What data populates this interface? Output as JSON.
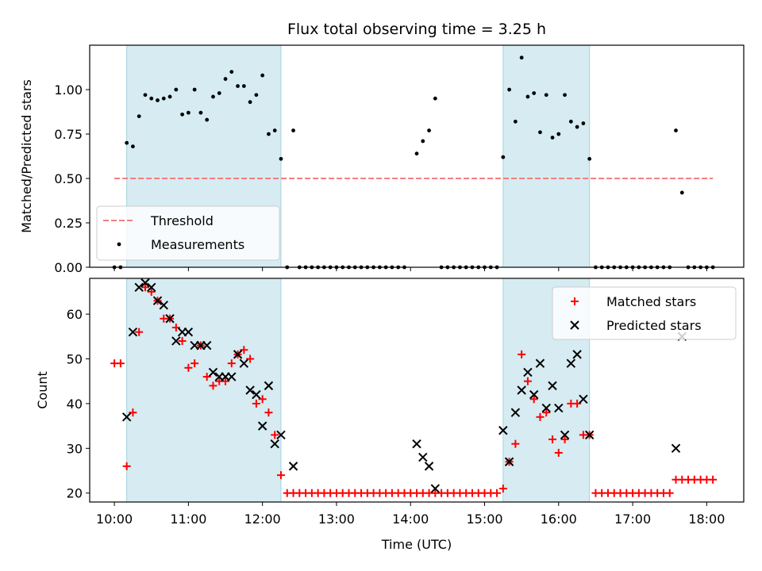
{
  "chart_data": [
    {
      "type": "scatter",
      "title": "Flux total observing time = 3.25 h",
      "xlabel": "",
      "ylabel": "Matched/Predicted stars",
      "xlim": [
        "09:40",
        "18:30"
      ],
      "ylim": [
        0,
        1.25
      ],
      "yticks": [
        "0.00",
        "0.25",
        "0.50",
        "0.75",
        "1.00"
      ],
      "grid": false,
      "legend": "lower-left",
      "shaded_intervals": [
        [
          "10:10",
          "12:15"
        ],
        [
          "15:15",
          "16:25"
        ]
      ],
      "threshold": {
        "name": "Threshold",
        "y": 0.5,
        "x_range": [
          "10:00",
          "18:05"
        ],
        "color": "#f47f7f",
        "style": "dashed"
      },
      "series": [
        {
          "name": "Measurements",
          "color": "#000000",
          "marker": "dot",
          "points": [
            [
              "10:00",
              0
            ],
            [
              "10:05",
              0
            ],
            [
              "10:10",
              0.7
            ],
            [
              "10:15",
              0.68
            ],
            [
              "10:20",
              0.85
            ],
            [
              "10:25",
              0.97
            ],
            [
              "10:30",
              0.95
            ],
            [
              "10:35",
              0.94
            ],
            [
              "10:40",
              0.95
            ],
            [
              "10:45",
              0.96
            ],
            [
              "10:50",
              1.0
            ],
            [
              "10:55",
              0.86
            ],
            [
              "11:00",
              0.87
            ],
            [
              "11:05",
              1.0
            ],
            [
              "11:10",
              0.87
            ],
            [
              "11:15",
              0.83
            ],
            [
              "11:20",
              0.96
            ],
            [
              "11:25",
              0.98
            ],
            [
              "11:30",
              1.06
            ],
            [
              "11:35",
              1.1
            ],
            [
              "11:40",
              1.02
            ],
            [
              "11:45",
              1.02
            ],
            [
              "11:50",
              0.93
            ],
            [
              "11:55",
              0.97
            ],
            [
              "12:00",
              1.08
            ],
            [
              "12:05",
              0.75
            ],
            [
              "12:10",
              0.77
            ],
            [
              "12:15",
              0.61
            ],
            [
              "12:20",
              0
            ],
            [
              "12:25",
              0.77
            ],
            [
              "12:30",
              0
            ],
            [
              "12:35",
              0
            ],
            [
              "12:40",
              0
            ],
            [
              "12:45",
              0
            ],
            [
              "12:50",
              0
            ],
            [
              "12:55",
              0
            ],
            [
              "13:00",
              0
            ],
            [
              "13:05",
              0
            ],
            [
              "13:10",
              0
            ],
            [
              "13:15",
              0
            ],
            [
              "13:20",
              0
            ],
            [
              "13:25",
              0
            ],
            [
              "13:30",
              0
            ],
            [
              "13:35",
              0
            ],
            [
              "13:40",
              0
            ],
            [
              "13:45",
              0
            ],
            [
              "13:50",
              0
            ],
            [
              "13:55",
              0
            ],
            [
              "14:05",
              0.64
            ],
            [
              "14:10",
              0.71
            ],
            [
              "14:15",
              0.77
            ],
            [
              "14:20",
              0.95
            ],
            [
              "14:25",
              0
            ],
            [
              "14:30",
              0
            ],
            [
              "14:35",
              0
            ],
            [
              "14:40",
              0
            ],
            [
              "14:45",
              0
            ],
            [
              "14:50",
              0
            ],
            [
              "14:55",
              0
            ],
            [
              "15:00",
              0
            ],
            [
              "15:05",
              0
            ],
            [
              "15:10",
              0
            ],
            [
              "15:15",
              0.62
            ],
            [
              "15:20",
              1.0
            ],
            [
              "15:25",
              0.82
            ],
            [
              "15:30",
              1.18
            ],
            [
              "15:35",
              0.96
            ],
            [
              "15:40",
              0.98
            ],
            [
              "15:45",
              0.76
            ],
            [
              "15:50",
              0.97
            ],
            [
              "15:55",
              0.73
            ],
            [
              "16:00",
              0.75
            ],
            [
              "16:05",
              0.97
            ],
            [
              "16:10",
              0.82
            ],
            [
              "16:15",
              0.79
            ],
            [
              "16:20",
              0.81
            ],
            [
              "16:25",
              0.61
            ],
            [
              "16:30",
              0
            ],
            [
              "16:35",
              0
            ],
            [
              "16:40",
              0
            ],
            [
              "16:45",
              0
            ],
            [
              "16:50",
              0
            ],
            [
              "16:55",
              0
            ],
            [
              "17:00",
              0
            ],
            [
              "17:05",
              0
            ],
            [
              "17:10",
              0
            ],
            [
              "17:15",
              0
            ],
            [
              "17:20",
              0
            ],
            [
              "17:25",
              0
            ],
            [
              "17:30",
              0
            ],
            [
              "17:35",
              0.77
            ],
            [
              "17:40",
              0.42
            ],
            [
              "17:45",
              0
            ],
            [
              "17:50",
              0
            ],
            [
              "17:55",
              0
            ],
            [
              "18:00",
              0
            ],
            [
              "18:05",
              0
            ]
          ]
        }
      ],
      "legend_entries": [
        {
          "label": "Threshold",
          "kind": "dashed-line",
          "color": "#f47f7f"
        },
        {
          "label": "Measurements",
          "kind": "dot",
          "color": "#000000"
        }
      ]
    },
    {
      "type": "scatter",
      "title": "",
      "xlabel": "Time (UTC)",
      "ylabel": "Count",
      "xlim": [
        "09:40",
        "18:30"
      ],
      "xticks": [
        "10:00",
        "11:00",
        "12:00",
        "13:00",
        "14:00",
        "15:00",
        "16:00",
        "17:00",
        "18:00"
      ],
      "ylim": [
        18,
        68
      ],
      "yticks": [
        "20",
        "30",
        "40",
        "50",
        "60"
      ],
      "grid": false,
      "legend": "upper-right",
      "shaded_intervals": [
        [
          "10:10",
          "12:15"
        ],
        [
          "15:15",
          "16:25"
        ]
      ],
      "series": [
        {
          "name": "Matched stars",
          "color": "#ff0000",
          "marker": "plus",
          "points": [
            [
              "10:00",
              49
            ],
            [
              "10:05",
              49
            ],
            [
              "10:10",
              26
            ],
            [
              "10:15",
              38
            ],
            [
              "10:20",
              56
            ],
            [
              "10:25",
              66
            ],
            [
              "10:30",
              65
            ],
            [
              "10:35",
              63
            ],
            [
              "10:40",
              59
            ],
            [
              "10:45",
              59
            ],
            [
              "10:50",
              57
            ],
            [
              "10:55",
              54
            ],
            [
              "11:00",
              48
            ],
            [
              "11:05",
              49
            ],
            [
              "11:10",
              53
            ],
            [
              "11:15",
              46
            ],
            [
              "11:20",
              44
            ],
            [
              "11:25",
              45
            ],
            [
              "11:30",
              45
            ],
            [
              "11:35",
              49
            ],
            [
              "11:40",
              51
            ],
            [
              "11:45",
              52
            ],
            [
              "11:50",
              50
            ],
            [
              "11:55",
              40
            ],
            [
              "12:00",
              41
            ],
            [
              "12:05",
              38
            ],
            [
              "12:10",
              33
            ],
            [
              "12:15",
              24
            ],
            [
              "12:20",
              20
            ],
            [
              "12:25",
              20
            ],
            [
              "12:30",
              20
            ],
            [
              "12:35",
              20
            ],
            [
              "12:40",
              20
            ],
            [
              "12:45",
              20
            ],
            [
              "12:50",
              20
            ],
            [
              "12:55",
              20
            ],
            [
              "13:00",
              20
            ],
            [
              "13:05",
              20
            ],
            [
              "13:10",
              20
            ],
            [
              "13:15",
              20
            ],
            [
              "13:20",
              20
            ],
            [
              "13:25",
              20
            ],
            [
              "13:30",
              20
            ],
            [
              "13:35",
              20
            ],
            [
              "13:40",
              20
            ],
            [
              "13:45",
              20
            ],
            [
              "13:50",
              20
            ],
            [
              "13:55",
              20
            ],
            [
              "14:00",
              20
            ],
            [
              "14:05",
              20
            ],
            [
              "14:10",
              20
            ],
            [
              "14:15",
              20
            ],
            [
              "14:20",
              20
            ],
            [
              "14:25",
              20
            ],
            [
              "14:30",
              20
            ],
            [
              "14:35",
              20
            ],
            [
              "14:40",
              20
            ],
            [
              "14:45",
              20
            ],
            [
              "14:50",
              20
            ],
            [
              "14:55",
              20
            ],
            [
              "15:00",
              20
            ],
            [
              "15:05",
              20
            ],
            [
              "15:10",
              20
            ],
            [
              "15:15",
              21
            ],
            [
              "15:20",
              27
            ],
            [
              "15:25",
              31
            ],
            [
              "15:30",
              51
            ],
            [
              "15:35",
              45
            ],
            [
              "15:40",
              41
            ],
            [
              "15:45",
              37
            ],
            [
              "15:50",
              38
            ],
            [
              "15:55",
              32
            ],
            [
              "16:00",
              29
            ],
            [
              "16:05",
              32
            ],
            [
              "16:10",
              40
            ],
            [
              "16:15",
              40
            ],
            [
              "16:20",
              33
            ],
            [
              "16:25",
              33
            ],
            [
              "16:30",
              20
            ],
            [
              "16:35",
              20
            ],
            [
              "16:40",
              20
            ],
            [
              "16:45",
              20
            ],
            [
              "16:50",
              20
            ],
            [
              "16:55",
              20
            ],
            [
              "17:00",
              20
            ],
            [
              "17:05",
              20
            ],
            [
              "17:10",
              20
            ],
            [
              "17:15",
              20
            ],
            [
              "17:20",
              20
            ],
            [
              "17:25",
              20
            ],
            [
              "17:30",
              20
            ],
            [
              "17:35",
              23
            ],
            [
              "17:40",
              23
            ],
            [
              "17:45",
              23
            ],
            [
              "17:50",
              23
            ],
            [
              "17:55",
              23
            ],
            [
              "18:00",
              23
            ],
            [
              "18:05",
              23
            ]
          ]
        },
        {
          "name": "Predicted stars",
          "color": "#000000",
          "marker": "x",
          "points": [
            [
              "10:10",
              37
            ],
            [
              "10:15",
              56
            ],
            [
              "10:20",
              66
            ],
            [
              "10:25",
              67
            ],
            [
              "10:30",
              66
            ],
            [
              "10:35",
              63
            ],
            [
              "10:40",
              62
            ],
            [
              "10:45",
              59
            ],
            [
              "10:50",
              54
            ],
            [
              "10:55",
              56
            ],
            [
              "11:00",
              56
            ],
            [
              "11:05",
              53
            ],
            [
              "11:10",
              53
            ],
            [
              "11:15",
              53
            ],
            [
              "11:20",
              47
            ],
            [
              "11:25",
              46
            ],
            [
              "11:30",
              46
            ],
            [
              "11:35",
              46
            ],
            [
              "11:40",
              51
            ],
            [
              "11:45",
              49
            ],
            [
              "11:50",
              43
            ],
            [
              "11:55",
              42
            ],
            [
              "12:00",
              35
            ],
            [
              "12:05",
              44
            ],
            [
              "12:10",
              31
            ],
            [
              "12:15",
              33
            ],
            [
              "12:25",
              26
            ],
            [
              "14:05",
              31
            ],
            [
              "14:10",
              28
            ],
            [
              "14:15",
              26
            ],
            [
              "14:20",
              21
            ],
            [
              "15:15",
              34
            ],
            [
              "15:20",
              27
            ],
            [
              "15:25",
              38
            ],
            [
              "15:30",
              43
            ],
            [
              "15:35",
              47
            ],
            [
              "15:40",
              42
            ],
            [
              "15:45",
              49
            ],
            [
              "15:50",
              39
            ],
            [
              "15:55",
              44
            ],
            [
              "16:00",
              39
            ],
            [
              "16:05",
              33
            ],
            [
              "16:10",
              49
            ],
            [
              "16:15",
              51
            ],
            [
              "16:20",
              41
            ],
            [
              "16:25",
              33
            ],
            [
              "17:35",
              30
            ],
            [
              "17:40",
              55
            ]
          ]
        }
      ],
      "legend_entries": [
        {
          "label": "Matched stars",
          "kind": "plus",
          "color": "#ff0000"
        },
        {
          "label": "Predicted stars",
          "kind": "x",
          "color": "#000000"
        }
      ]
    }
  ]
}
